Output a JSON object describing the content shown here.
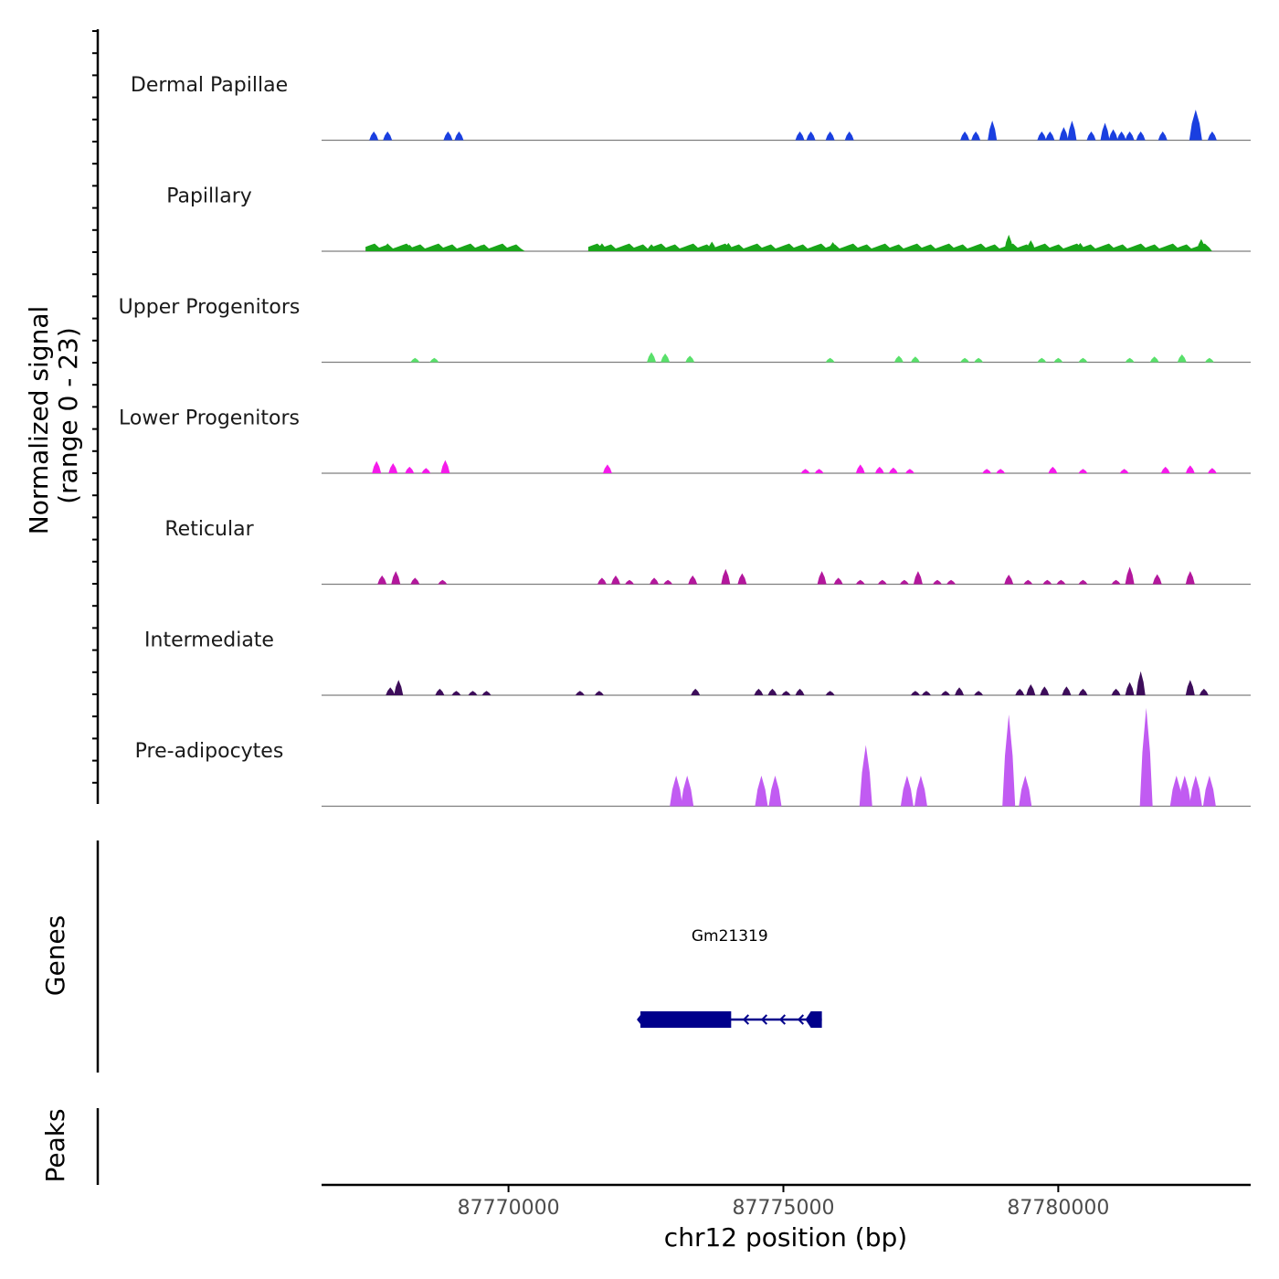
{
  "chart_data": {
    "type": "area",
    "title": "",
    "ylabel_line1": "Normalized signal",
    "ylabel_line2": "(range 0 - 23)",
    "yrange": [
      0,
      23
    ],
    "xlabel": "chr12 position (bp)",
    "xlim": [
      87766600,
      87783500
    ],
    "data_extent": [
      87767400,
      87782800
    ],
    "xticks": [
      87770000,
      87775000,
      87780000
    ],
    "xtick_labels": [
      "87770000",
      "87775000",
      "87780000"
    ],
    "tracks": [
      {
        "name": "Dermal Papillae",
        "color": "#1a3fe0",
        "peaks": [
          [
            87767550,
            2
          ],
          [
            87767800,
            2
          ],
          [
            87768900,
            2
          ],
          [
            87769100,
            2
          ],
          [
            87775300,
            2
          ],
          [
            87775500,
            2
          ],
          [
            87775850,
            2
          ],
          [
            87776200,
            2
          ],
          [
            87778300,
            2
          ],
          [
            87778500,
            2
          ],
          [
            87778800,
            4.5
          ],
          [
            87779700,
            2
          ],
          [
            87779850,
            2
          ],
          [
            87780100,
            3
          ],
          [
            87780250,
            4.5
          ],
          [
            87780600,
            2
          ],
          [
            87780850,
            4
          ],
          [
            87781000,
            2.5
          ],
          [
            87781150,
            2
          ],
          [
            87781300,
            2
          ],
          [
            87781500,
            2
          ],
          [
            87781900,
            2
          ],
          [
            87782500,
            7
          ],
          [
            87782800,
            2
          ]
        ]
      },
      {
        "name": "Papillary",
        "color": "#19a519",
        "segments": [
          [
            87767400,
            87770300
          ],
          [
            87771450,
            87782800
          ]
        ],
        "peaks": [
          [
            87767800,
            1.8
          ],
          [
            87768200,
            1.5
          ],
          [
            87769500,
            1.4
          ],
          [
            87771700,
            1.8
          ],
          [
            87772600,
            1.6
          ],
          [
            87773700,
            2.2
          ],
          [
            87774000,
            1.9
          ],
          [
            87775900,
            2.1
          ],
          [
            87779100,
            3.8
          ],
          [
            87779500,
            2.5
          ],
          [
            87780400,
            1.9
          ],
          [
            87782600,
            2.8
          ]
        ]
      },
      {
        "name": "Upper Progenitors",
        "color": "#59e06b",
        "peaks": [
          [
            87768300,
            1
          ],
          [
            87768650,
            1
          ],
          [
            87772600,
            2.3
          ],
          [
            87772850,
            2
          ],
          [
            87773300,
            1.5
          ],
          [
            87775850,
            1
          ],
          [
            87777100,
            1.5
          ],
          [
            87777400,
            1.3
          ],
          [
            87778300,
            1
          ],
          [
            87778550,
            1
          ],
          [
            87779700,
            1
          ],
          [
            87780000,
            1
          ],
          [
            87780450,
            1
          ],
          [
            87781300,
            1
          ],
          [
            87781750,
            1.3
          ],
          [
            87782250,
            1.8
          ],
          [
            87782750,
            1
          ]
        ]
      },
      {
        "name": "Lower Progenitors",
        "color": "#f51bea",
        "peaks": [
          [
            87767600,
            2.8
          ],
          [
            87767900,
            2.3
          ],
          [
            87768200,
            1.5
          ],
          [
            87768500,
            1.2
          ],
          [
            87768850,
            3
          ],
          [
            87771800,
            2
          ],
          [
            87775400,
            1
          ],
          [
            87775650,
            1
          ],
          [
            87776400,
            2
          ],
          [
            87776750,
            1.5
          ],
          [
            87777000,
            1.3
          ],
          [
            87777300,
            1
          ],
          [
            87778700,
            1
          ],
          [
            87778950,
            1
          ],
          [
            87779900,
            1.5
          ],
          [
            87780450,
            1
          ],
          [
            87781200,
            1
          ],
          [
            87781950,
            1.5
          ],
          [
            87782400,
            1.8
          ],
          [
            87782800,
            1.2
          ]
        ]
      },
      {
        "name": "Reticular",
        "color": "#b3179c",
        "peaks": [
          [
            87767700,
            2
          ],
          [
            87767950,
            3
          ],
          [
            87768300,
            1.5
          ],
          [
            87768800,
            1
          ],
          [
            87771700,
            1.5
          ],
          [
            87771950,
            2
          ],
          [
            87772200,
            1
          ],
          [
            87772650,
            1.5
          ],
          [
            87772900,
            1
          ],
          [
            87773350,
            2
          ],
          [
            87773950,
            3.5
          ],
          [
            87774250,
            2.5
          ],
          [
            87775700,
            3
          ],
          [
            87776000,
            1.5
          ],
          [
            87776400,
            1
          ],
          [
            87776800,
            1
          ],
          [
            87777200,
            1
          ],
          [
            87777450,
            3
          ],
          [
            87777800,
            1
          ],
          [
            87778050,
            1
          ],
          [
            87779100,
            2.2
          ],
          [
            87779450,
            1
          ],
          [
            87779800,
            1
          ],
          [
            87780050,
            1
          ],
          [
            87780450,
            1
          ],
          [
            87781050,
            1
          ],
          [
            87781300,
            4
          ],
          [
            87781800,
            2.3
          ],
          [
            87782400,
            3
          ]
        ]
      },
      {
        "name": "Intermediate",
        "color": "#3d0d5a",
        "peaks": [
          [
            87767850,
            1.8
          ],
          [
            87768000,
            3.5
          ],
          [
            87768750,
            1.5
          ],
          [
            87769050,
            1
          ],
          [
            87769350,
            1
          ],
          [
            87769600,
            1
          ],
          [
            87771300,
            1
          ],
          [
            87771650,
            1
          ],
          [
            87773400,
            1.5
          ],
          [
            87774550,
            1.5
          ],
          [
            87774800,
            1.5
          ],
          [
            87775050,
            1
          ],
          [
            87775300,
            1.5
          ],
          [
            87775850,
            1
          ],
          [
            87777400,
            1
          ],
          [
            87777600,
            1
          ],
          [
            87777950,
            1
          ],
          [
            87778200,
            1.8
          ],
          [
            87778550,
            1
          ],
          [
            87779300,
            1.5
          ],
          [
            87779500,
            2.5
          ],
          [
            87779750,
            2
          ],
          [
            87780150,
            2
          ],
          [
            87780450,
            1.5
          ],
          [
            87781050,
            1.5
          ],
          [
            87781300,
            3
          ],
          [
            87781500,
            5.5
          ],
          [
            87782400,
            3.5
          ],
          [
            87782650,
            1.5
          ]
        ]
      },
      {
        "name": "Pre-adipocytes",
        "color": "#c15bf2",
        "peaks": [
          [
            87773050,
            7
          ],
          [
            87773250,
            7
          ],
          [
            87774600,
            7
          ],
          [
            87774850,
            7
          ],
          [
            87776500,
            14
          ],
          [
            87777250,
            7
          ],
          [
            87777500,
            7
          ],
          [
            87779100,
            21
          ],
          [
            87779400,
            7
          ],
          [
            87781600,
            22.5
          ],
          [
            87782150,
            7
          ],
          [
            87782300,
            7
          ],
          [
            87782500,
            7
          ],
          [
            87782750,
            7
          ]
        ]
      }
    ],
    "genes": {
      "title": "Genes",
      "gene_name": "Gm21319",
      "strand": "-",
      "start": 87772350,
      "end": 87775700,
      "thick_start": 87772400,
      "thick_end": 87774050,
      "exon2_start": 87775500,
      "exon2_end": 87775700,
      "color": "#00008b"
    },
    "peaks_track": {
      "title": "Peaks",
      "regions": []
    }
  }
}
